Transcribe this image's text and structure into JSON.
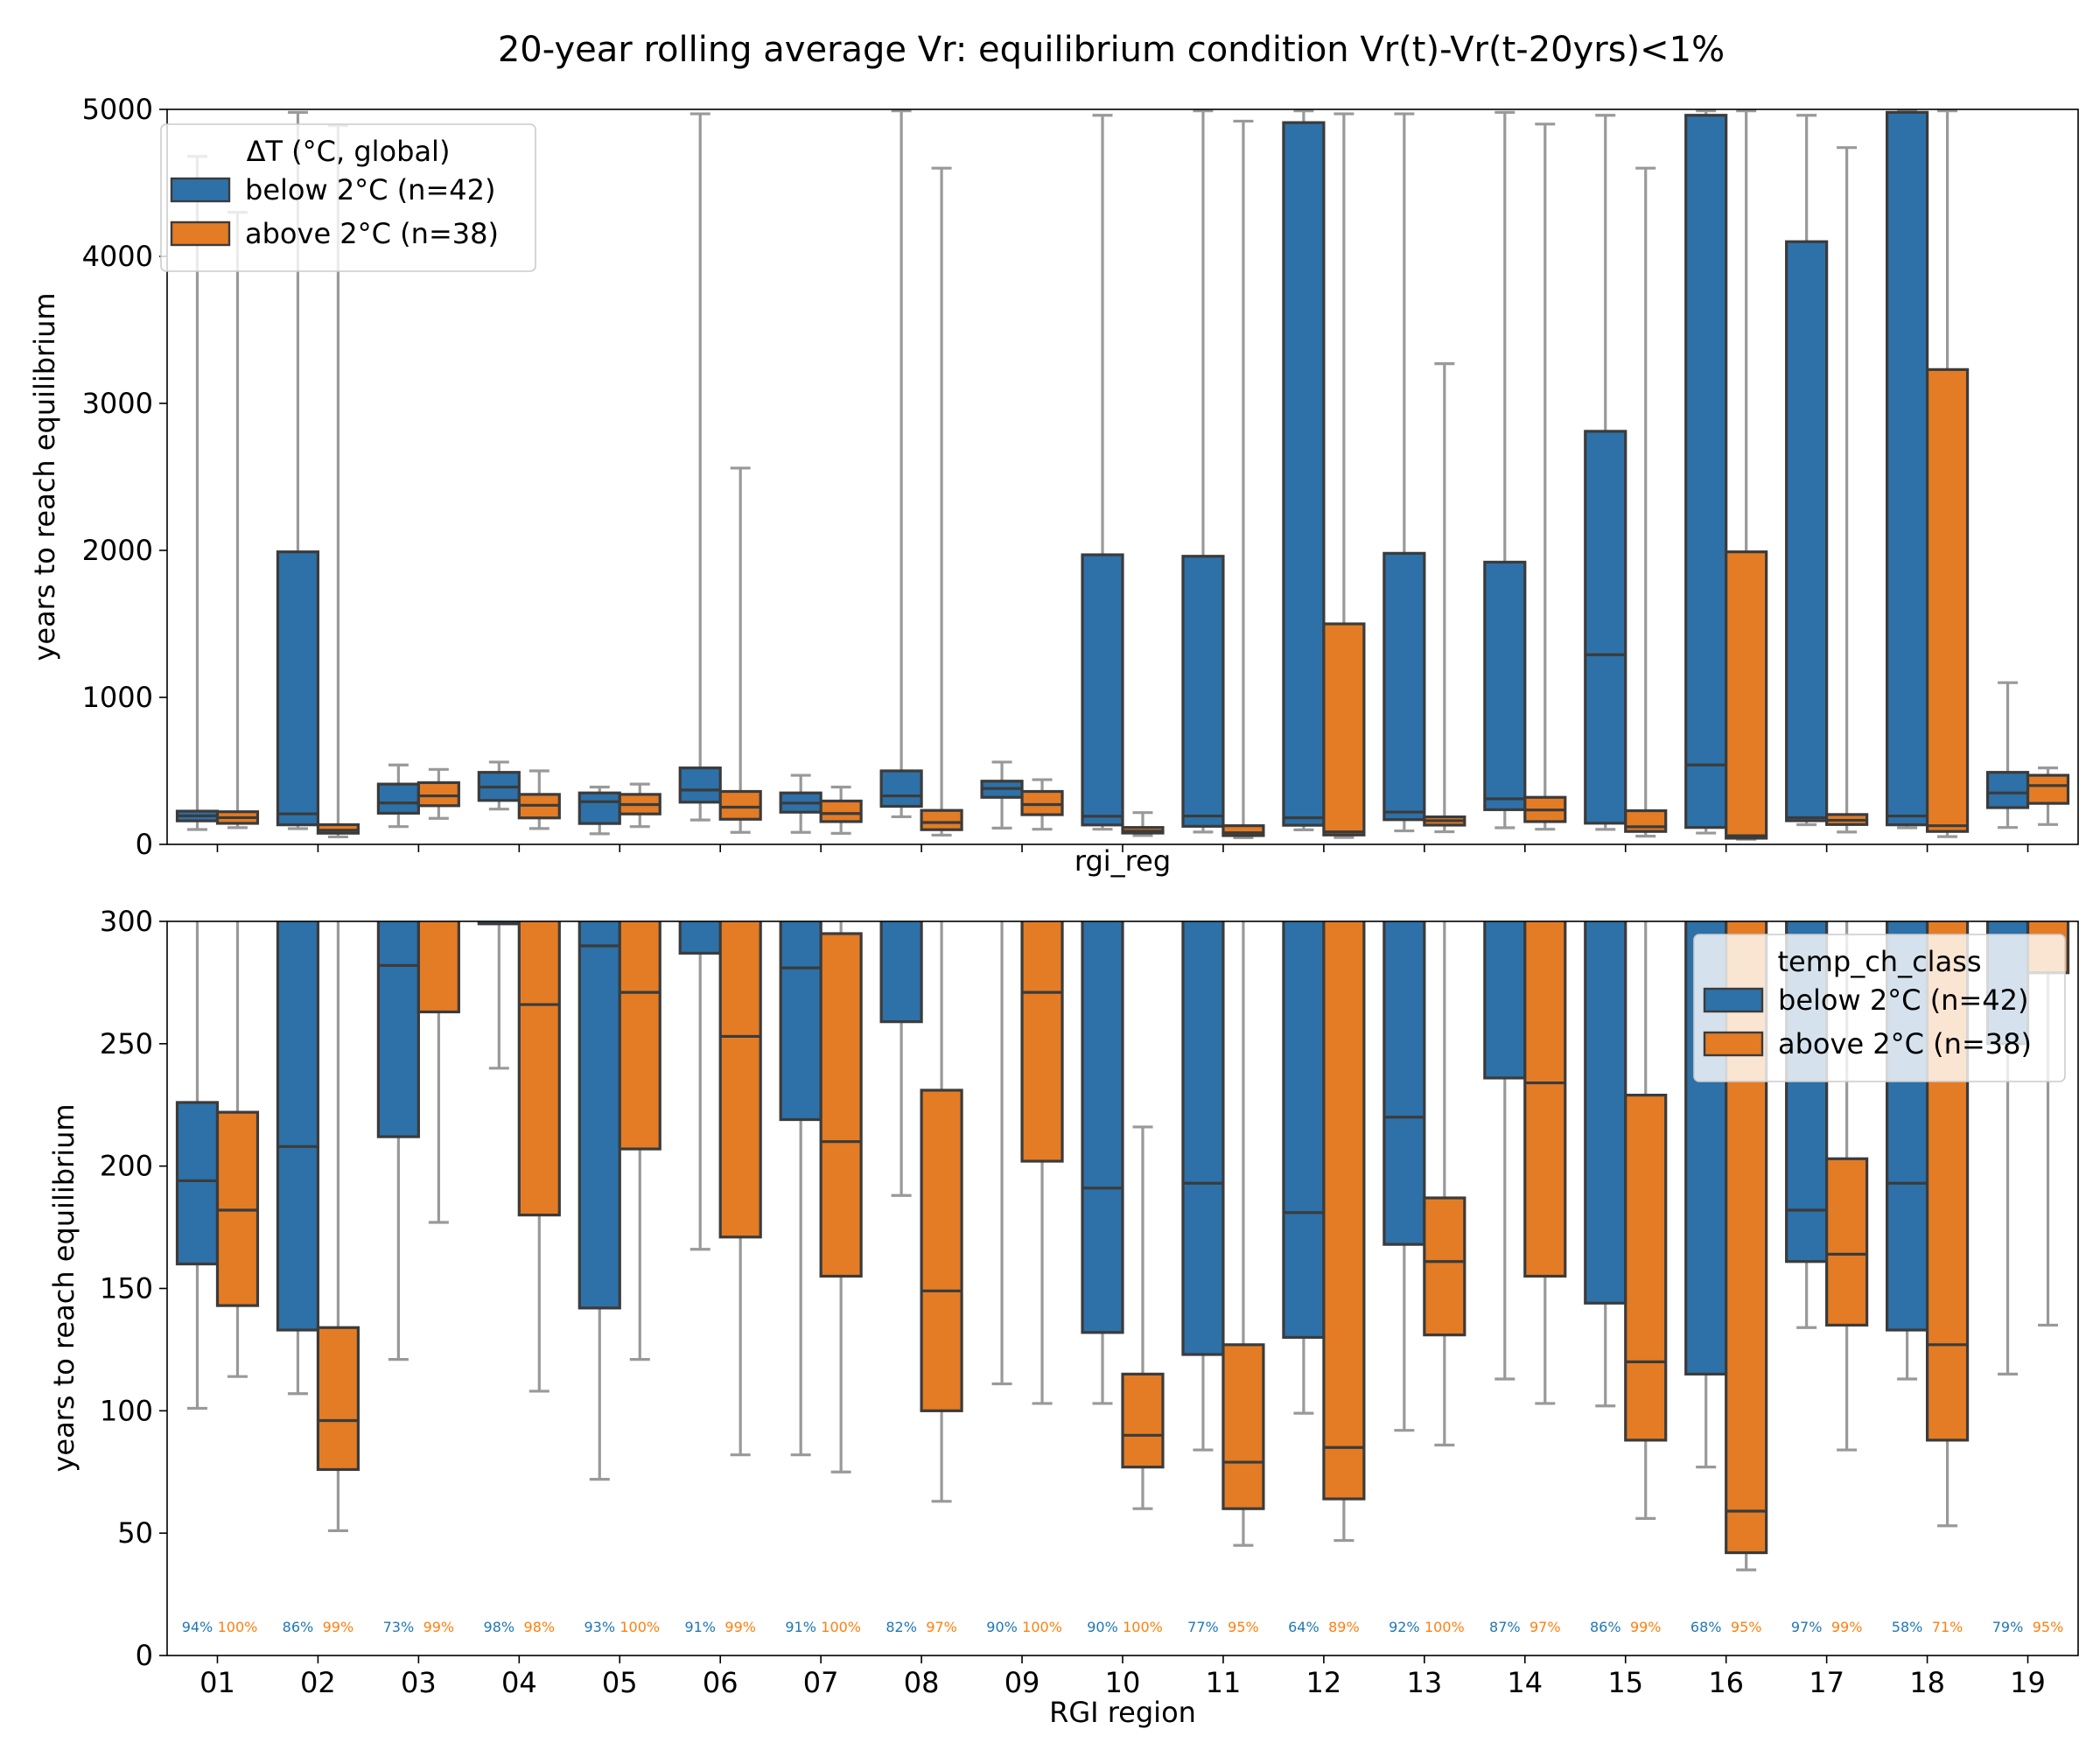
{
  "figure": {
    "title": "20-year rolling average Vr: equilibrium condition Vr(t)-Vr(t-20yrs)<1%"
  },
  "colors": {
    "below": "#2d71a8",
    "above": "#e37c25",
    "box_edge": "#3b3b3b",
    "whisker": "#999999",
    "pct_below": "#1f77b4",
    "pct_above": "#ff7f0e"
  },
  "chart_data": [
    {
      "type": "box",
      "panel": "top",
      "xlabel": "rgi_reg",
      "ylabel": "years to reach equilibrium",
      "ylim": [
        0,
        5000
      ],
      "yticks": [
        0,
        1000,
        2000,
        3000,
        4000,
        5000
      ],
      "show_xticklabels": false,
      "legend": {
        "title": "ΔT (°C, global)",
        "position": "upper-left",
        "entries": [
          "below 2°C (n=42)",
          "above 2°C (n=38)"
        ]
      },
      "categories": [
        "01",
        "02",
        "03",
        "04",
        "05",
        "06",
        "07",
        "08",
        "09",
        "10",
        "11",
        "12",
        "13",
        "14",
        "15",
        "16",
        "17",
        "18",
        "19"
      ],
      "series": [
        {
          "name": "below 2°C (n=42)",
          "color_key": "below",
          "boxes": [
            {
              "q1": 160,
              "median": 194,
              "q3": 226,
              "wlo": 101,
              "whi": 4680
            },
            {
              "q1": 133,
              "median": 208,
              "q3": 1990,
              "wlo": 107,
              "whi": 4980
            },
            {
              "q1": 212,
              "median": 282,
              "q3": 410,
              "wlo": 121,
              "whi": 540
            },
            {
              "q1": 299,
              "median": 390,
              "q3": 490,
              "wlo": 240,
              "whi": 560
            },
            {
              "q1": 142,
              "median": 290,
              "q3": 350,
              "wlo": 72,
              "whi": 390
            },
            {
              "q1": 287,
              "median": 370,
              "q3": 520,
              "wlo": 166,
              "whi": 4970
            },
            {
              "q1": 219,
              "median": 281,
              "q3": 350,
              "wlo": 82,
              "whi": 470
            },
            {
              "q1": 259,
              "median": 330,
              "q3": 500,
              "wlo": 188,
              "whi": 4990
            },
            {
              "q1": 320,
              "median": 380,
              "q3": 430,
              "wlo": 111,
              "whi": 560
            },
            {
              "q1": 132,
              "median": 191,
              "q3": 1970,
              "wlo": 103,
              "whi": 4960
            },
            {
              "q1": 123,
              "median": 193,
              "q3": 1960,
              "wlo": 84,
              "whi": 4990
            },
            {
              "q1": 130,
              "median": 181,
              "q3": 4910,
              "wlo": 99,
              "whi": 4990
            },
            {
              "q1": 168,
              "median": 220,
              "q3": 1980,
              "wlo": 92,
              "whi": 4970
            },
            {
              "q1": 236,
              "median": 310,
              "q3": 1920,
              "wlo": 113,
              "whi": 4980
            },
            {
              "q1": 144,
              "median": 1290,
              "q3": 2810,
              "wlo": 102,
              "whi": 4960
            },
            {
              "q1": 115,
              "median": 540,
              "q3": 4960,
              "wlo": 77,
              "whi": 4990
            },
            {
              "q1": 161,
              "median": 182,
              "q3": 4100,
              "wlo": 134,
              "whi": 4960
            },
            {
              "q1": 133,
              "median": 193,
              "q3": 4980,
              "wlo": 113,
              "whi": 4990
            },
            {
              "q1": 250,
              "median": 350,
              "q3": 490,
              "wlo": 115,
              "whi": 1100
            }
          ]
        },
        {
          "name": "above 2°C (n=38)",
          "color_key": "above",
          "boxes": [
            {
              "q1": 143,
              "median": 182,
              "q3": 222,
              "wlo": 114,
              "whi": 4300
            },
            {
              "q1": 76,
              "median": 96,
              "q3": 134,
              "wlo": 51,
              "whi": 4890
            },
            {
              "q1": 263,
              "median": 330,
              "q3": 420,
              "wlo": 177,
              "whi": 510
            },
            {
              "q1": 180,
              "median": 266,
              "q3": 340,
              "wlo": 108,
              "whi": 500
            },
            {
              "q1": 207,
              "median": 271,
              "q3": 340,
              "wlo": 121,
              "whi": 410
            },
            {
              "q1": 171,
              "median": 253,
              "q3": 360,
              "wlo": 82,
              "whi": 2560
            },
            {
              "q1": 155,
              "median": 210,
              "q3": 295,
              "wlo": 75,
              "whi": 390
            },
            {
              "q1": 100,
              "median": 149,
              "q3": 231,
              "wlo": 63,
              "whi": 4600
            },
            {
              "q1": 202,
              "median": 271,
              "q3": 360,
              "wlo": 103,
              "whi": 440
            },
            {
              "q1": 77,
              "median": 90,
              "q3": 115,
              "wlo": 60,
              "whi": 216
            },
            {
              "q1": 60,
              "median": 79,
              "q3": 127,
              "wlo": 45,
              "whi": 4920
            },
            {
              "q1": 64,
              "median": 85,
              "q3": 1500,
              "wlo": 47,
              "whi": 4970
            },
            {
              "q1": 131,
              "median": 161,
              "q3": 187,
              "wlo": 86,
              "whi": 3270
            },
            {
              "q1": 155,
              "median": 234,
              "q3": 320,
              "wlo": 103,
              "whi": 4900
            },
            {
              "q1": 88,
              "median": 120,
              "q3": 229,
              "wlo": 56,
              "whi": 4600
            },
            {
              "q1": 42,
              "median": 59,
              "q3": 1990,
              "wlo": 35,
              "whi": 4990
            },
            {
              "q1": 135,
              "median": 164,
              "q3": 203,
              "wlo": 84,
              "whi": 4740
            },
            {
              "q1": 88,
              "median": 127,
              "q3": 3230,
              "wlo": 53,
              "whi": 4990
            },
            {
              "q1": 279,
              "median": 400,
              "q3": 470,
              "wlo": 135,
              "whi": 520
            }
          ]
        }
      ]
    },
    {
      "type": "box",
      "panel": "bottom",
      "xlabel": "RGI region",
      "ylabel": "years to reach equilibrium",
      "ylim": [
        0,
        300
      ],
      "yticks": [
        0,
        50,
        100,
        150,
        200,
        250,
        300
      ],
      "show_xticklabels": true,
      "legend": {
        "title": "temp_ch_class",
        "position": "upper-right",
        "entries": [
          "below 2°C (n=42)",
          "above 2°C (n=38)"
        ]
      },
      "same_data_as_panel": "top",
      "annotations": {
        "below": [
          "94%",
          "86%",
          "73%",
          "98%",
          "93%",
          "91%",
          "91%",
          "82%",
          "90%",
          "90%",
          "77%",
          "64%",
          "92%",
          "87%",
          "86%",
          "68%",
          "97%",
          "58%",
          "79%"
        ],
        "above": [
          "100%",
          "99%",
          "99%",
          "98%",
          "100%",
          "99%",
          "100%",
          "97%",
          "100%",
          "100%",
          "95%",
          "89%",
          "100%",
          "97%",
          "99%",
          "95%",
          "99%",
          "71%",
          "95%"
        ]
      }
    }
  ]
}
